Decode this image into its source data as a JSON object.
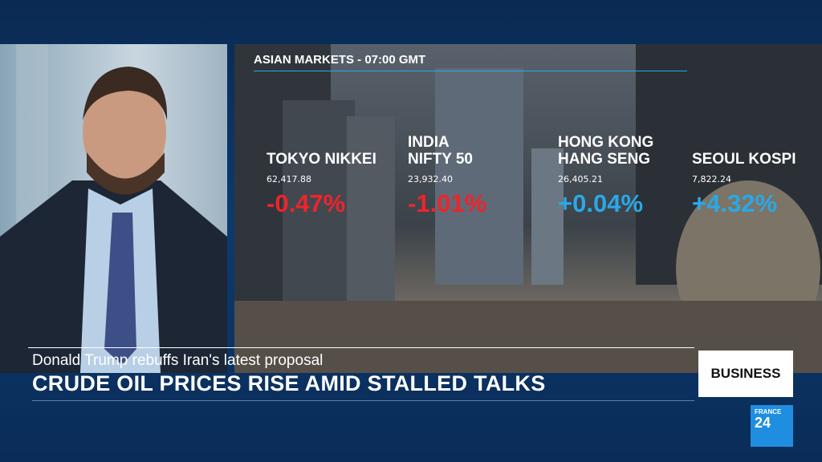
{
  "header": {
    "title": "ASIAN MARKETS - 07:00 GMT"
  },
  "markets": [
    {
      "name": [
        "TOKYO NIKKEI"
      ],
      "value": "62,417.88",
      "change": "-0.47%",
      "color": "#f0232b"
    },
    {
      "name": [
        "INDIA",
        "NIFTY 50"
      ],
      "value": "23,932.40",
      "change": "-1.01%",
      "color": "#f0232b"
    },
    {
      "name": [
        "HONG KONG",
        "HANG SENG"
      ],
      "value": "26,405.21",
      "change": "+0.04%",
      "color": "#2aa8e8"
    },
    {
      "name": [
        "SEOUL KOSPI"
      ],
      "value": "7,822.24",
      "change": "+4.32%",
      "color": "#2aa8e8"
    }
  ],
  "lower_third": {
    "subtitle": "Donald Trump rebuffs Iran's latest proposal",
    "headline": "CRUDE OIL PRICES RISE AMID STALLED TALKS",
    "tag": "BUSINESS"
  },
  "logo": {
    "line1": "FRANCE",
    "line2": "24"
  }
}
